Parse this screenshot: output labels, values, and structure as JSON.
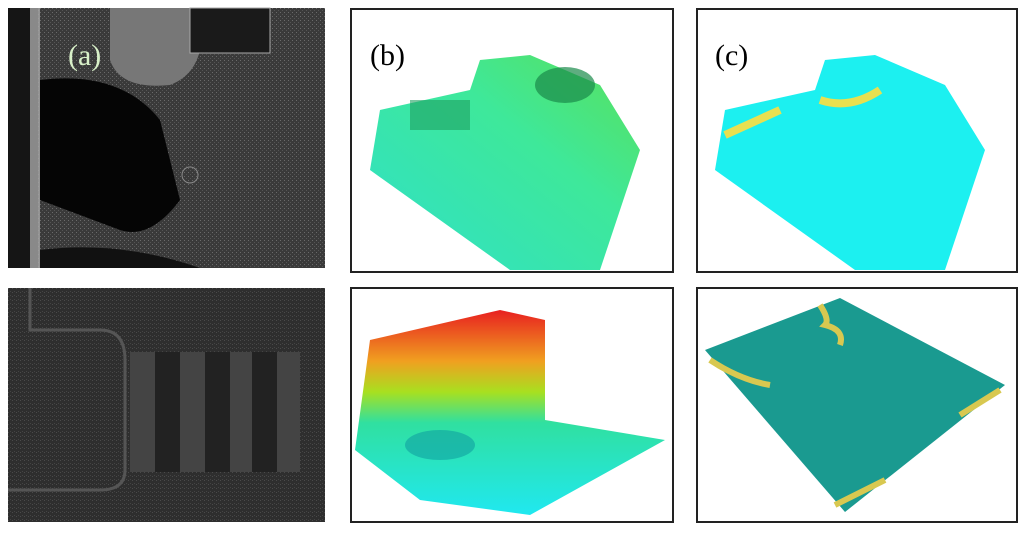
{
  "panels": {
    "a": {
      "label": "(a)"
    },
    "b": {
      "label": "(b)"
    },
    "c": {
      "label": "(c)"
    }
  }
}
